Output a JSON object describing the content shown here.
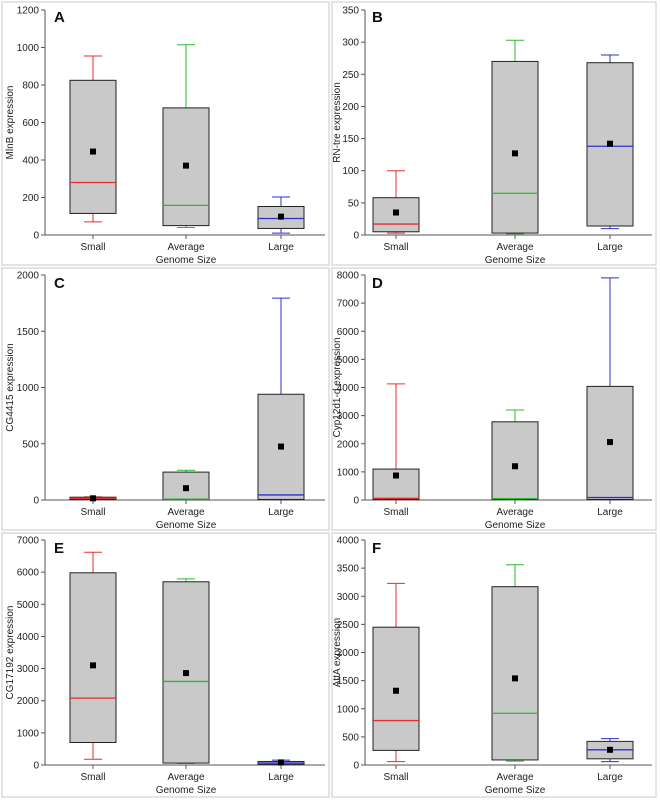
{
  "colors": {
    "small": "#e03030",
    "average": "#2fb82f",
    "large": "#2f2fd0",
    "box_fill": "#c9c9c9",
    "mean_marker": "#000000"
  },
  "chart_data": [
    {
      "panel": "A",
      "type": "box",
      "ylabel": "MlnB expression",
      "xlabel": "",
      "ylim": [
        0,
        1200
      ],
      "yticks": [
        0,
        200,
        400,
        600,
        800,
        1000,
        1200
      ],
      "categories": [
        "Small",
        "Average",
        "Large"
      ],
      "boxes": [
        {
          "whisker_low": 70,
          "q1": 115,
          "median": 280,
          "q3": 825,
          "whisker_high": 955,
          "mean": 445
        },
        {
          "whisker_low": 40,
          "q1": 50,
          "median": 158,
          "q3": 678,
          "whisker_high": 1015,
          "mean": 370
        },
        {
          "whisker_low": 10,
          "q1": 35,
          "median": 88,
          "q3": 152,
          "whisker_high": 203,
          "mean": 98
        }
      ]
    },
    {
      "panel": "B",
      "type": "box",
      "ylabel": "RN-tre expression",
      "xlabel": "",
      "ylim": [
        0,
        350
      ],
      "yticks": [
        0,
        50,
        100,
        150,
        200,
        250,
        300,
        350
      ],
      "categories": [
        "Small",
        "Average",
        "Large"
      ],
      "boxes": [
        {
          "whisker_low": 3,
          "q1": 5,
          "median": 17,
          "q3": 58,
          "whisker_high": 100,
          "mean": 35
        },
        {
          "whisker_low": 2,
          "q1": 3,
          "median": 65,
          "q3": 270,
          "whisker_high": 303,
          "mean": 127
        },
        {
          "whisker_low": 10,
          "q1": 14,
          "median": 138,
          "q3": 268,
          "whisker_high": 280,
          "mean": 142
        }
      ]
    },
    {
      "panel": "C",
      "type": "box",
      "ylabel": "CG4415 expression",
      "xlabel": "",
      "ylim": [
        0,
        2000
      ],
      "yticks": [
        0,
        500,
        1000,
        1500,
        2000
      ],
      "categories": [
        "Small",
        "Average",
        "Large"
      ],
      "boxes": [
        {
          "whisker_low": 3,
          "q1": 5,
          "median": 15,
          "q3": 25,
          "whisker_high": 28,
          "mean": 15
        },
        {
          "whisker_low": 2,
          "q1": 3,
          "median": 8,
          "q3": 248,
          "whisker_high": 265,
          "mean": 105
        },
        {
          "whisker_low": 3,
          "q1": 5,
          "median": 45,
          "q3": 940,
          "whisker_high": 1795,
          "mean": 475
        }
      ]
    },
    {
      "panel": "D",
      "type": "box",
      "ylabel": "Cyp12d1-d expression",
      "xlabel": "",
      "ylim": [
        0,
        8000
      ],
      "yticks": [
        0,
        1000,
        2000,
        3000,
        4000,
        5000,
        6000,
        7000,
        8000
      ],
      "categories": [
        "Small",
        "Average",
        "Large"
      ],
      "boxes": [
        {
          "whisker_low": 10,
          "q1": 20,
          "median": 60,
          "q3": 1100,
          "whisker_high": 4130,
          "mean": 870
        },
        {
          "whisker_low": 10,
          "q1": 20,
          "median": 50,
          "q3": 2780,
          "whisker_high": 3200,
          "mean": 1200
        },
        {
          "whisker_low": 10,
          "q1": 20,
          "median": 90,
          "q3": 4040,
          "whisker_high": 7900,
          "mean": 2060
        }
      ]
    },
    {
      "panel": "E",
      "type": "box",
      "ylabel": "CG17192 expression",
      "xlabel": "",
      "ylim": [
        0,
        7000
      ],
      "yticks": [
        0,
        1000,
        2000,
        3000,
        4000,
        5000,
        6000,
        7000
      ],
      "categories": [
        "Small",
        "Average",
        "Large"
      ],
      "boxes": [
        {
          "whisker_low": 180,
          "q1": 700,
          "median": 2080,
          "q3": 5980,
          "whisker_high": 6620,
          "mean": 3100
        },
        {
          "whisker_low": 50,
          "q1": 60,
          "median": 2600,
          "q3": 5700,
          "whisker_high": 5790,
          "mean": 2860
        },
        {
          "whisker_low": 10,
          "q1": 20,
          "median": 60,
          "q3": 110,
          "whisker_high": 150,
          "mean": 80
        }
      ]
    },
    {
      "panel": "F",
      "type": "box",
      "ylabel": "AttA expression",
      "xlabel": "",
      "ylim": [
        0,
        4000
      ],
      "yticks": [
        0,
        500,
        1000,
        1500,
        2000,
        2500,
        3000,
        3500,
        4000
      ],
      "categories": [
        "Small",
        "Average",
        "Large"
      ],
      "boxes": [
        {
          "whisker_low": 60,
          "q1": 260,
          "median": 790,
          "q3": 2450,
          "whisker_high": 3230,
          "mean": 1320
        },
        {
          "whisker_low": 70,
          "q1": 90,
          "median": 920,
          "q3": 3170,
          "whisker_high": 3560,
          "mean": 1540
        },
        {
          "whisker_low": 60,
          "q1": 110,
          "median": 270,
          "q3": 420,
          "whisker_high": 470,
          "mean": 270
        }
      ]
    }
  ],
  "shared_xlabel": "Genome Size"
}
